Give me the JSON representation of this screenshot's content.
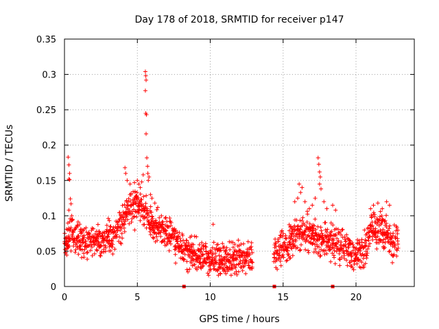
{
  "chart_data": {
    "type": "scatter",
    "title": "Day 178 of 2018, SRMTID for receiver p147",
    "xlabel": "GPS time / hours",
    "ylabel": "SRMTID / TECUs",
    "xlim": [
      0,
      24
    ],
    "ylim": [
      0,
      0.35
    ],
    "xticks": [
      0,
      5,
      10,
      15,
      20
    ],
    "xtick_labels": [
      "0",
      "5",
      "10",
      "15",
      "20"
    ],
    "yticks": [
      0,
      0.05,
      0.1,
      0.15,
      0.2,
      0.25,
      0.3,
      0.35
    ],
    "ytick_labels": [
      "0",
      "0.05",
      "0.1",
      "0.15",
      "0.2",
      "0.25",
      "0.3",
      "0.35"
    ],
    "grid": true,
    "marker": "+",
    "color": "#ff0000",
    "trend": [
      [
        0.0,
        0.06
      ],
      [
        0.5,
        0.075
      ],
      [
        1.0,
        0.068
      ],
      [
        1.5,
        0.062
      ],
      [
        2.0,
        0.065
      ],
      [
        2.5,
        0.067
      ],
      [
        3.0,
        0.07
      ],
      [
        3.5,
        0.075
      ],
      [
        4.0,
        0.09
      ],
      [
        4.5,
        0.11
      ],
      [
        5.0,
        0.115
      ],
      [
        5.5,
        0.105
      ],
      [
        6.0,
        0.09
      ],
      [
        6.5,
        0.08
      ],
      [
        7.0,
        0.075
      ],
      [
        7.5,
        0.07
      ],
      [
        8.0,
        0.055
      ],
      [
        8.5,
        0.048
      ],
      [
        9.0,
        0.045
      ],
      [
        9.5,
        0.043
      ],
      [
        10.0,
        0.04
      ],
      [
        10.5,
        0.038
      ],
      [
        11.0,
        0.037
      ],
      [
        11.5,
        0.04
      ],
      [
        12.0,
        0.042
      ],
      [
        12.5,
        0.045
      ],
      [
        12.9,
        0.045
      ],
      [
        14.4,
        0.05
      ],
      [
        15.0,
        0.06
      ],
      [
        15.5,
        0.065
      ],
      [
        16.0,
        0.075
      ],
      [
        16.5,
        0.078
      ],
      [
        17.0,
        0.072
      ],
      [
        17.5,
        0.068
      ],
      [
        18.0,
        0.065
      ],
      [
        18.5,
        0.06
      ],
      [
        19.0,
        0.058
      ],
      [
        19.5,
        0.05
      ],
      [
        20.0,
        0.045
      ],
      [
        20.5,
        0.045
      ],
      [
        21.0,
        0.08
      ],
      [
        21.5,
        0.085
      ],
      [
        22.0,
        0.075
      ],
      [
        22.5,
        0.06
      ],
      [
        22.9,
        0.06
      ]
    ],
    "spread": 0.018,
    "gaps": [
      [
        12.9,
        14.35
      ]
    ],
    "spikes": [
      [
        0.25,
        0.183
      ],
      [
        0.3,
        0.172
      ],
      [
        0.35,
        0.16
      ],
      [
        0.35,
        0.151
      ],
      [
        0.3,
        0.152
      ],
      [
        0.4,
        0.124
      ],
      [
        0.45,
        0.117
      ],
      [
        0.3,
        0.108
      ],
      [
        0.5,
        0.1
      ],
      [
        0.55,
        0.095
      ],
      [
        4.15,
        0.168
      ],
      [
        4.2,
        0.16
      ],
      [
        4.3,
        0.15
      ],
      [
        4.5,
        0.145
      ],
      [
        4.8,
        0.147
      ],
      [
        5.0,
        0.15
      ],
      [
        5.1,
        0.145
      ],
      [
        5.2,
        0.14
      ],
      [
        5.3,
        0.148
      ],
      [
        5.4,
        0.158
      ],
      [
        5.55,
        0.304
      ],
      [
        5.58,
        0.298
      ],
      [
        5.6,
        0.292
      ],
      [
        5.55,
        0.277
      ],
      [
        5.58,
        0.245
      ],
      [
        5.62,
        0.243
      ],
      [
        5.6,
        0.216
      ],
      [
        5.65,
        0.182
      ],
      [
        5.7,
        0.17
      ],
      [
        5.72,
        0.16
      ],
      [
        5.8,
        0.155
      ],
      [
        5.75,
        0.15
      ],
      [
        5.9,
        0.13
      ],
      [
        6.0,
        0.125
      ],
      [
        6.2,
        0.118
      ],
      [
        6.4,
        0.112
      ],
      [
        10.2,
        0.088
      ],
      [
        15.8,
        0.12
      ],
      [
        16.0,
        0.125
      ],
      [
        16.2,
        0.133
      ],
      [
        16.1,
        0.145
      ],
      [
        16.3,
        0.14
      ],
      [
        16.5,
        0.12
      ],
      [
        16.8,
        0.11
      ],
      [
        17.0,
        0.115
      ],
      [
        17.2,
        0.125
      ],
      [
        17.4,
        0.182
      ],
      [
        17.45,
        0.173
      ],
      [
        17.5,
        0.162
      ],
      [
        17.55,
        0.155
      ],
      [
        17.5,
        0.145
      ],
      [
        17.6,
        0.138
      ],
      [
        17.8,
        0.12
      ],
      [
        18.0,
        0.11
      ],
      [
        18.4,
        0.115
      ],
      [
        18.6,
        0.108
      ],
      [
        21.0,
        0.11
      ],
      [
        21.2,
        0.115
      ],
      [
        21.5,
        0.118
      ],
      [
        21.8,
        0.11
      ],
      [
        22.1,
        0.12
      ],
      [
        22.3,
        0.115
      ]
    ],
    "dropouts": [
      [
        8.2,
        0.0
      ],
      [
        14.4,
        0.0
      ],
      [
        18.4,
        0.0
      ]
    ]
  }
}
